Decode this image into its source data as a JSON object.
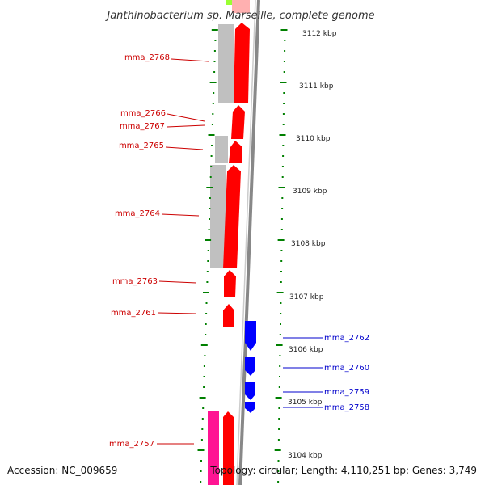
{
  "title": "Janthinobacterium sp. Marseille, complete genome",
  "footer": {
    "accession": "Accession: NC_009659",
    "summary": "Topology: circular; Length: 4,110,251 bp; Genes: 3,749"
  },
  "colors": {
    "forward_gene": "#ff0000",
    "reverse_gene": "#0000ff",
    "gray_feature": "#c0c0c0",
    "pink_feature": "#ff1493",
    "ticks": "#008000",
    "fwd_label": "#cc0000",
    "rev_label": "#0000cc"
  },
  "scale_labels": [
    "3112 kbp",
    "3111 kbp",
    "3110 kbp",
    "3109 kbp",
    "3108 kbp",
    "3107 kbp",
    "3106 kbp",
    "3105 kbp",
    "3104 kbp"
  ],
  "forward_genes": [
    "mma_2768",
    "mma_2766",
    "mma_2767",
    "mma_2765",
    "mma_2764",
    "mma_2763",
    "mma_2761",
    "mma_2757"
  ],
  "reverse_genes": [
    "mma_2762",
    "mma_2760",
    "mma_2759",
    "mma_2758"
  ]
}
